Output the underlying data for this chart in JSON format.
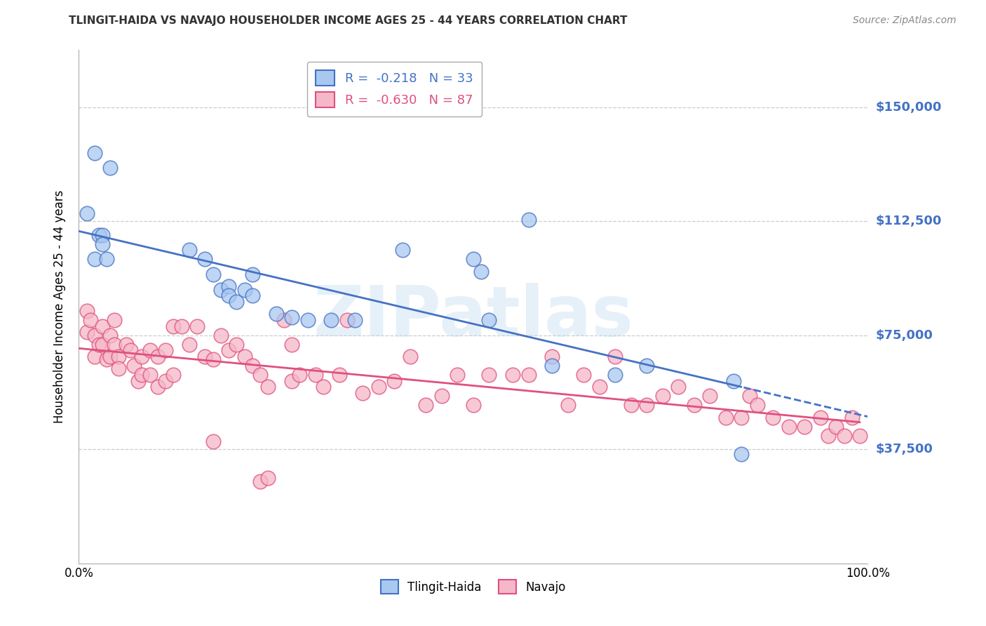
{
  "title": "TLINGIT-HAIDA VS NAVAJO HOUSEHOLDER INCOME AGES 25 - 44 YEARS CORRELATION CHART",
  "source": "Source: ZipAtlas.com",
  "ylabel": "Householder Income Ages 25 - 44 years",
  "ytick_labels": [
    "$37,500",
    "$75,000",
    "$112,500",
    "$150,000"
  ],
  "ytick_values": [
    37500,
    75000,
    112500,
    150000
  ],
  "ymin": 0,
  "ymax": 168750,
  "xmin": 0.0,
  "xmax": 1.0,
  "legend_blue_r": "-0.218",
  "legend_blue_n": "33",
  "legend_pink_r": "-0.630",
  "legend_pink_n": "87",
  "blue_color": "#A8C8F0",
  "pink_color": "#F5B8C8",
  "blue_line_color": "#4472C4",
  "pink_line_color": "#E05080",
  "watermark": "ZIPatlas",
  "blue_scatter_x": [
    0.02,
    0.04,
    0.01,
    0.025,
    0.03,
    0.03,
    0.02,
    0.035,
    0.14,
    0.16,
    0.17,
    0.18,
    0.19,
    0.19,
    0.2,
    0.21,
    0.22,
    0.22,
    0.25,
    0.27,
    0.29,
    0.32,
    0.35,
    0.41,
    0.5,
    0.51,
    0.52,
    0.57,
    0.6,
    0.68,
    0.72,
    0.83,
    0.84
  ],
  "blue_scatter_y": [
    135000,
    130000,
    115000,
    108000,
    108000,
    105000,
    100000,
    100000,
    103000,
    100000,
    95000,
    90000,
    91000,
    88000,
    86000,
    90000,
    95000,
    88000,
    82000,
    81000,
    80000,
    80000,
    80000,
    103000,
    100000,
    96000,
    80000,
    113000,
    65000,
    62000,
    65000,
    60000,
    36000
  ],
  "pink_scatter_x": [
    0.01,
    0.01,
    0.015,
    0.02,
    0.02,
    0.025,
    0.03,
    0.03,
    0.035,
    0.04,
    0.04,
    0.045,
    0.045,
    0.05,
    0.05,
    0.06,
    0.065,
    0.07,
    0.075,
    0.08,
    0.08,
    0.09,
    0.09,
    0.1,
    0.1,
    0.11,
    0.11,
    0.12,
    0.12,
    0.13,
    0.14,
    0.15,
    0.16,
    0.17,
    0.18,
    0.19,
    0.2,
    0.21,
    0.22,
    0.23,
    0.24,
    0.26,
    0.27,
    0.27,
    0.28,
    0.3,
    0.31,
    0.33,
    0.34,
    0.36,
    0.38,
    0.4,
    0.42,
    0.44,
    0.46,
    0.48,
    0.5,
    0.52,
    0.55,
    0.57,
    0.6,
    0.62,
    0.64,
    0.66,
    0.68,
    0.7,
    0.72,
    0.74,
    0.76,
    0.78,
    0.8,
    0.82,
    0.84,
    0.85,
    0.86,
    0.88,
    0.9,
    0.92,
    0.94,
    0.95,
    0.96,
    0.97,
    0.98,
    0.99,
    0.17,
    0.23,
    0.24
  ],
  "pink_scatter_y": [
    83000,
    76000,
    80000,
    75000,
    68000,
    72000,
    78000,
    72000,
    67000,
    75000,
    68000,
    80000,
    72000,
    68000,
    64000,
    72000,
    70000,
    65000,
    60000,
    68000,
    62000,
    70000,
    62000,
    68000,
    58000,
    70000,
    60000,
    78000,
    62000,
    78000,
    72000,
    78000,
    68000,
    67000,
    75000,
    70000,
    72000,
    68000,
    65000,
    62000,
    58000,
    80000,
    72000,
    60000,
    62000,
    62000,
    58000,
    62000,
    80000,
    56000,
    58000,
    60000,
    68000,
    52000,
    55000,
    62000,
    52000,
    62000,
    62000,
    62000,
    68000,
    52000,
    62000,
    58000,
    68000,
    52000,
    52000,
    55000,
    58000,
    52000,
    55000,
    48000,
    48000,
    55000,
    52000,
    48000,
    45000,
    45000,
    48000,
    42000,
    45000,
    42000,
    48000,
    42000,
    40000,
    27000,
    28000
  ],
  "bg_color": "#FFFFFF",
  "grid_color": "#CCCCCC"
}
